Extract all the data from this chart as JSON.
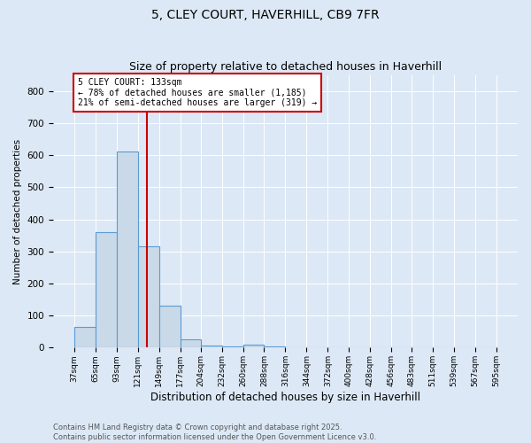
{
  "title": "5, CLEY COURT, HAVERHILL, CB9 7FR",
  "subtitle": "Size of property relative to detached houses in Haverhill",
  "xlabel": "Distribution of detached houses by size in Haverhill",
  "ylabel": "Number of detached properties",
  "bar_values": [
    65,
    360,
    610,
    315,
    130,
    27,
    8,
    5,
    10,
    5,
    0,
    0,
    0,
    0,
    0,
    0,
    0,
    0,
    0,
    0
  ],
  "bin_edges": [
    37,
    65,
    93,
    121,
    149,
    177,
    204,
    232,
    260,
    288,
    316,
    344,
    372,
    400,
    428,
    456,
    483,
    511,
    539,
    567,
    595
  ],
  "x_tick_labels": [
    "37sqm",
    "65sqm",
    "93sqm",
    "121sqm",
    "149sqm",
    "177sqm",
    "204sqm",
    "232sqm",
    "260sqm",
    "288sqm",
    "316sqm",
    "344sqm",
    "372sqm",
    "400sqm",
    "428sqm",
    "456sqm",
    "483sqm",
    "511sqm",
    "539sqm",
    "567sqm",
    "595sqm"
  ],
  "bar_color": "#c9d9e8",
  "bar_edge_color": "#5b9bd5",
  "red_line_x": 133,
  "annotation_text": "5 CLEY COURT: 133sqm\n← 78% of detached houses are smaller (1,185)\n21% of semi-detached houses are larger (319) →",
  "annotation_box_color": "#ffffff",
  "annotation_box_edge_color": "#cc0000",
  "ylim": [
    0,
    850
  ],
  "yticks": [
    0,
    100,
    200,
    300,
    400,
    500,
    600,
    700,
    800
  ],
  "footer": "Contains HM Land Registry data © Crown copyright and database right 2025.\nContains public sector information licensed under the Open Government Licence v3.0.",
  "bg_color": "#dce8f5",
  "plot_bg_color": "#dce8f5",
  "title_fontsize": 10,
  "subtitle_fontsize": 9
}
